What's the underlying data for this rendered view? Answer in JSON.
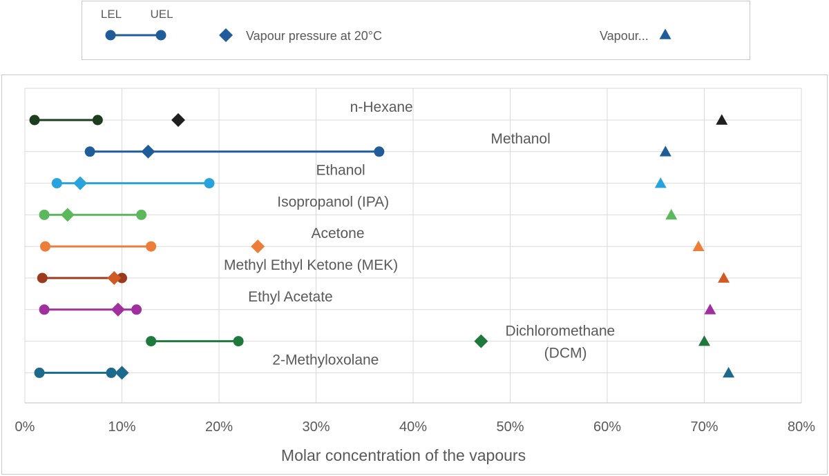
{
  "chart_data": {
    "type": "scatter",
    "title": "",
    "xlabel": "Molar concentration of the vapours",
    "ylabel": "",
    "xlim": [
      0,
      0.8
    ],
    "x_ticks": [
      "0%",
      "10%",
      "20%",
      "30%",
      "40%",
      "50%",
      "60%",
      "70%",
      "80%"
    ],
    "grid": true,
    "legend": {
      "position": "top",
      "entries": [
        {
          "name": "LEL",
          "marker": "circle"
        },
        {
          "name": "UEL",
          "marker": "circle"
        },
        {
          "name": "Vapour pressure at 20°C",
          "marker": "diamond"
        },
        {
          "name": "Vapour...",
          "marker": "triangle"
        }
      ]
    },
    "series": [
      {
        "name": "n-Hexane",
        "color": "#1e3d1e",
        "diamond_color": "#1f1f1f",
        "triangle_color": "#1f1f1f",
        "lel": 0.01,
        "uel": 0.075,
        "vapour_pressure": 0.158,
        "vapour": 0.718
      },
      {
        "name": "Methanol",
        "color": "#1f5c99",
        "diamond_color": "#1f5c99",
        "triangle_color": "#1f5c99",
        "lel": 0.067,
        "uel": 0.365,
        "vapour_pressure": 0.127,
        "vapour": 0.66
      },
      {
        "name": "Ethanol",
        "color": "#29a3dd",
        "diamond_color": "#29a3dd",
        "triangle_color": "#29a3dd",
        "lel": 0.033,
        "uel": 0.19,
        "vapour_pressure": 0.057,
        "vapour": 0.655
      },
      {
        "name": "Isopropanol (IPA)",
        "color": "#5cb85c",
        "diamond_color": "#5cb85c",
        "triangle_color": "#5cb85c",
        "lel": 0.02,
        "uel": 0.12,
        "vapour_pressure": 0.044,
        "vapour": 0.666
      },
      {
        "name": "Acetone",
        "color": "#ef7d3a",
        "diamond_color": "#ef7d3a",
        "triangle_color": "#ef7d3a",
        "lel": 0.021,
        "uel": 0.13,
        "vapour_pressure": 0.24,
        "vapour": 0.694
      },
      {
        "name": "Methyl Ethyl Ketone (MEK)",
        "color": "#9c3a1e",
        "diamond_color": "#d05a24",
        "triangle_color": "#d05a24",
        "lel": 0.018,
        "uel": 0.1,
        "vapour_pressure": 0.092,
        "vapour": 0.72
      },
      {
        "name": "Ethyl Acetate",
        "color": "#a0309e",
        "diamond_color": "#a0309e",
        "triangle_color": "#a0309e",
        "lel": 0.02,
        "uel": 0.115,
        "vapour_pressure": 0.096,
        "vapour": 0.706
      },
      {
        "name": "Dichloromethane (DCM)",
        "color": "#1e7a3c",
        "diamond_color": "#1e7a3c",
        "triangle_color": "#1e7a3c",
        "lel": 0.13,
        "uel": 0.22,
        "vapour_pressure": 0.47,
        "vapour": 0.7
      },
      {
        "name": "2-Methyloxolane",
        "color": "#1d6a8c",
        "diamond_color": "#1d6a8c",
        "triangle_color": "#1d6a8c",
        "lel": 0.015,
        "uel": 0.089,
        "vapour_pressure": 0.1,
        "vapour": 0.725
      }
    ],
    "annotations": [
      {
        "text": "n-Hexane",
        "x": 0.335,
        "series": "n-Hexane"
      },
      {
        "text": "Methanol",
        "x": 0.48,
        "series": "Methanol"
      },
      {
        "text": "Ethanol",
        "x": 0.3,
        "series": "Ethanol"
      },
      {
        "text": "Isopropanol (IPA)",
        "x": 0.26,
        "series": "Isopropanol (IPA)"
      },
      {
        "text": "Acetone",
        "x": 0.295,
        "series": "Acetone"
      },
      {
        "text": "Methyl Ethyl Ketone (MEK)",
        "x": 0.205,
        "series": "Methyl Ethyl Ketone (MEK)"
      },
      {
        "text": "Ethyl Acetate",
        "x": 0.23,
        "series": "Ethyl Acetate"
      },
      {
        "text": "Dichloromethane",
        "x": 0.495,
        "series": "Dichloromethane (DCM)",
        "line": 1
      },
      {
        "text": "(DCM)",
        "x": 0.535,
        "series": "Dichloromethane (DCM)",
        "line": 2
      },
      {
        "text": "2-Methyloxolane",
        "x": 0.255,
        "series": "2-Methyloxolane"
      }
    ]
  }
}
